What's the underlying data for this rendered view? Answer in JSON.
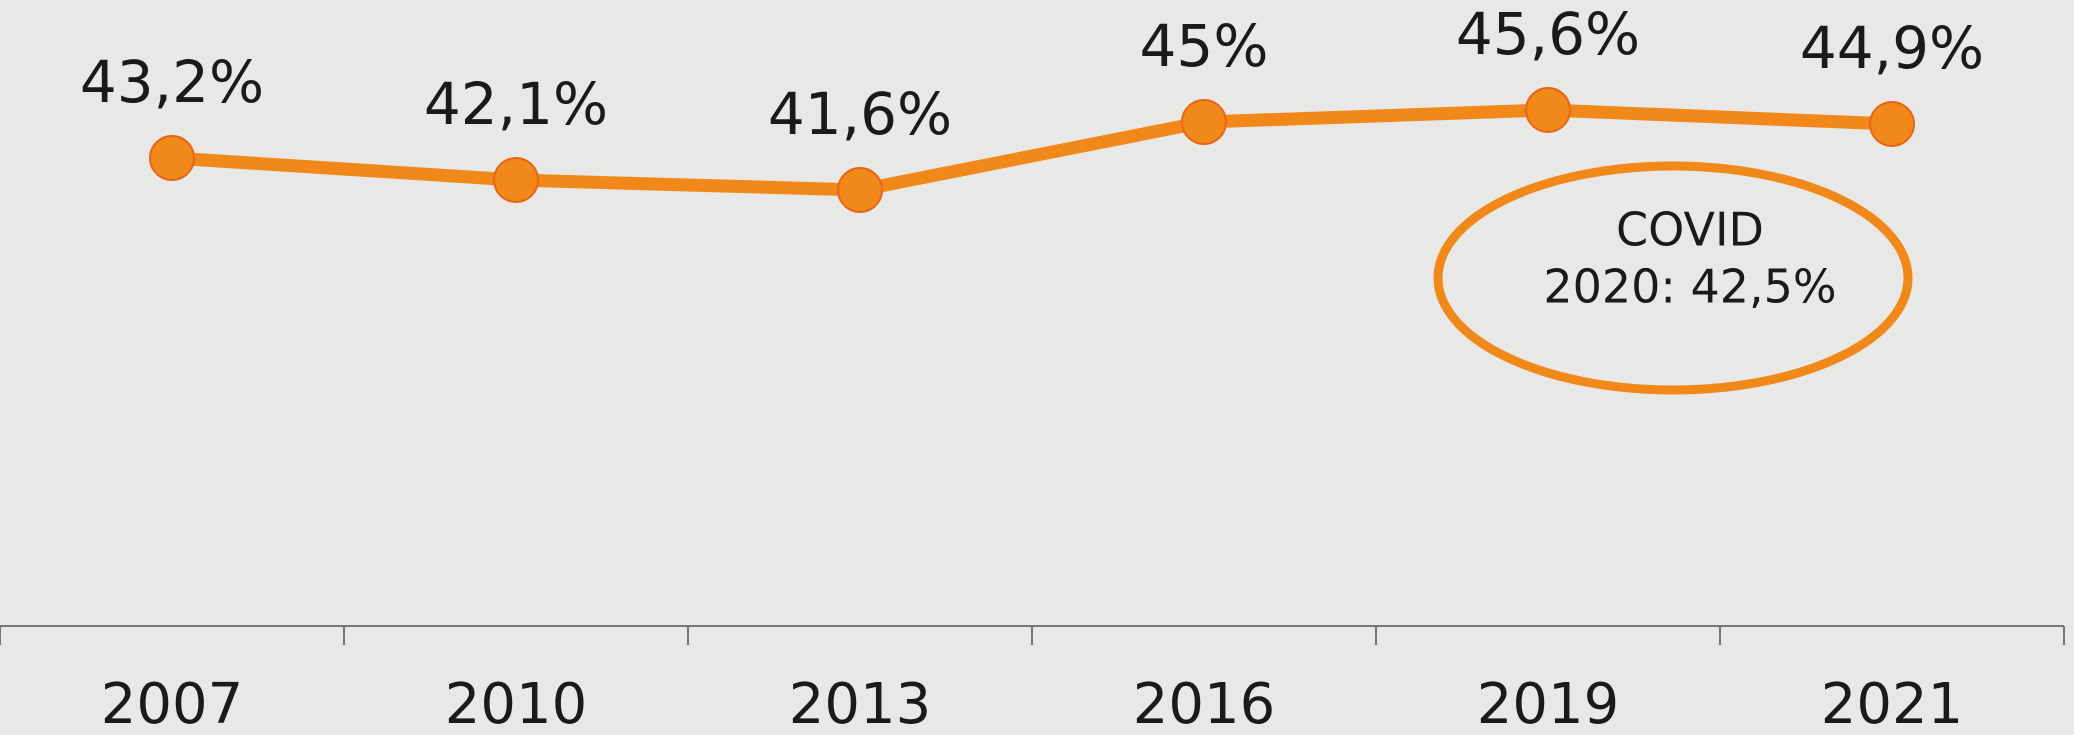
{
  "chart_data": {
    "type": "line",
    "categories": [
      "2007",
      "2010",
      "2013",
      "2016",
      "2019",
      "2021"
    ],
    "series": [
      {
        "color": "#f0881a",
        "values": [
          43.2,
          42.1,
          41.6,
          45,
          45.6,
          44.9
        ],
        "value_labels": [
          "43,2%",
          "42,1%",
          "41,6%",
          "45%",
          "45,6%",
          "44,9%"
        ]
      }
    ],
    "annotation": [
      "COVID",
      "2020: 42,5%"
    ]
  }
}
